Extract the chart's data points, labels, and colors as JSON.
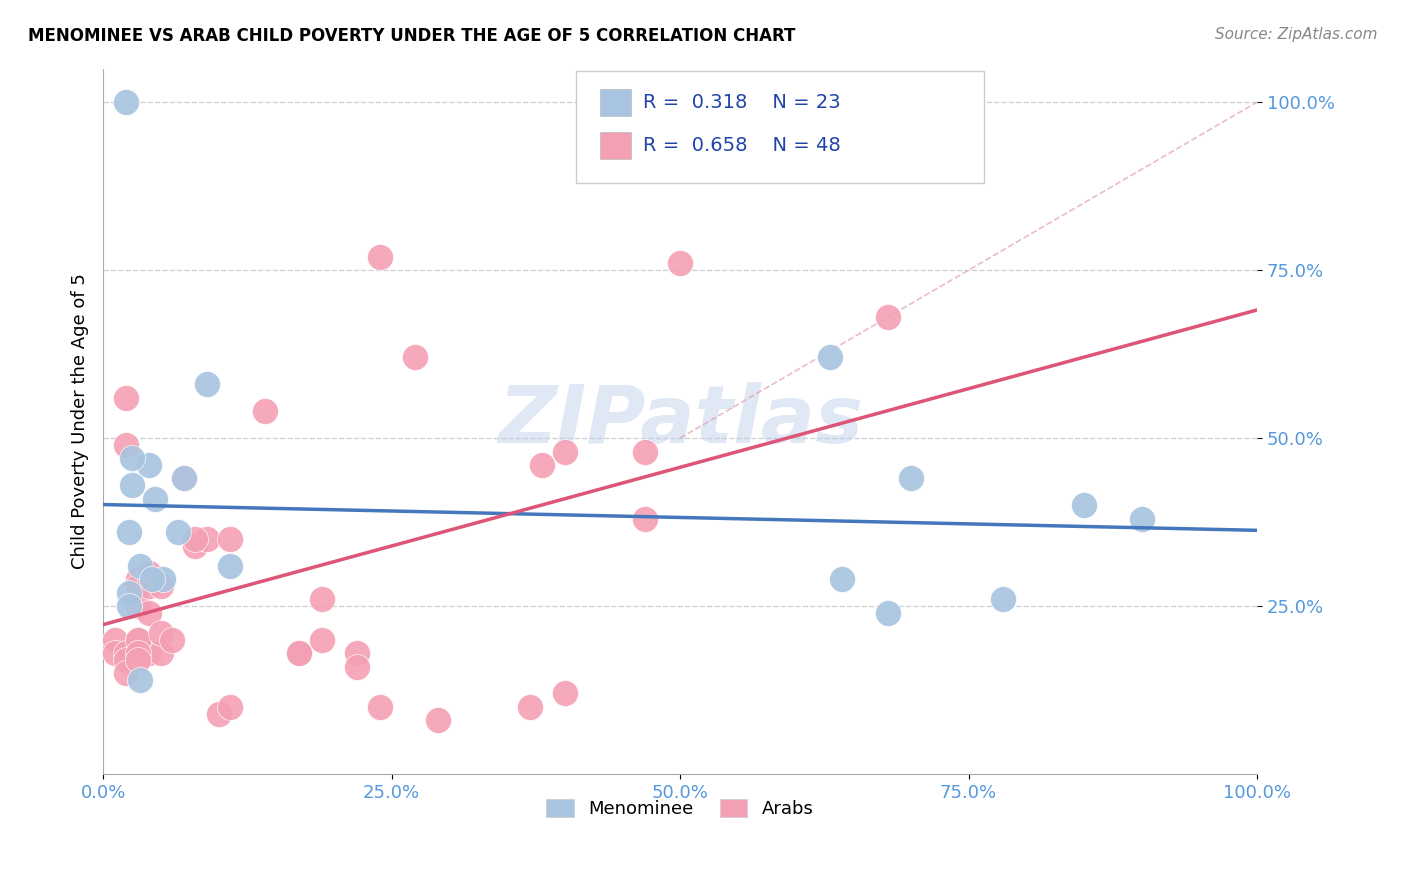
{
  "title": "MENOMINEE VS ARAB CHILD POVERTY UNDER THE AGE OF 5 CORRELATION CHART",
  "source": "Source: ZipAtlas.com",
  "ylabel": "Child Poverty Under the Age of 5",
  "menominee_R": 0.318,
  "menominee_N": 23,
  "arab_R": 0.658,
  "arab_N": 48,
  "menominee_color": "#a8c4e0",
  "arab_color": "#f4a0b4",
  "menominee_line_color": "#4477bb",
  "arab_line_color": "#dd5577",
  "diagonal_color": "#e0a0aa",
  "watermark": "ZIPatlas",
  "menominee_x": [
    0.02,
    0.04,
    0.07,
    0.09,
    0.11,
    0.025,
    0.045,
    0.065,
    0.022,
    0.022,
    0.032,
    0.052,
    0.042,
    0.032,
    0.63,
    0.64,
    0.7,
    0.78,
    0.85,
    0.68,
    0.9,
    0.025,
    0.022
  ],
  "menominee_y": [
    1.0,
    0.46,
    0.44,
    0.58,
    0.31,
    0.47,
    0.41,
    0.36,
    0.27,
    0.25,
    0.31,
    0.29,
    0.29,
    0.14,
    0.62,
    0.29,
    0.44,
    0.26,
    0.4,
    0.24,
    0.38,
    0.43,
    0.36
  ],
  "arab_x": [
    0.02,
    0.02,
    0.01,
    0.01,
    0.03,
    0.04,
    0.05,
    0.07,
    0.08,
    0.09,
    0.11,
    0.14,
    0.17,
    0.17,
    0.19,
    0.19,
    0.24,
    0.27,
    0.38,
    0.4,
    0.47,
    0.47,
    0.5,
    0.68,
    0.02,
    0.02,
    0.02,
    0.03,
    0.03,
    0.03,
    0.03,
    0.03,
    0.03,
    0.04,
    0.04,
    0.04,
    0.05,
    0.05,
    0.06,
    0.08,
    0.1,
    0.11,
    0.22,
    0.22,
    0.24,
    0.29,
    0.37,
    0.4
  ],
  "arab_y": [
    0.56,
    0.49,
    0.2,
    0.18,
    0.2,
    0.18,
    0.18,
    0.44,
    0.34,
    0.35,
    0.35,
    0.54,
    0.18,
    0.18,
    0.2,
    0.26,
    0.77,
    0.62,
    0.46,
    0.48,
    0.48,
    0.38,
    0.76,
    0.68,
    0.18,
    0.17,
    0.15,
    0.29,
    0.28,
    0.25,
    0.2,
    0.18,
    0.17,
    0.3,
    0.28,
    0.24,
    0.28,
    0.21,
    0.2,
    0.35,
    0.09,
    0.1,
    0.18,
    0.16,
    0.1,
    0.08,
    0.1,
    0.12
  ],
  "xlim": [
    0.0,
    1.0
  ],
  "ylim": [
    0.0,
    1.05
  ],
  "xticks": [
    0.0,
    0.25,
    0.5,
    0.75,
    1.0
  ],
  "yticks": [
    0.25,
    0.5,
    0.75,
    1.0
  ],
  "xticklabels": [
    "0.0%",
    "25.0%",
    "50.0%",
    "75.0%",
    "100.0%"
  ],
  "yticklabels": [
    "25.0%",
    "50.0%",
    "75.0%",
    "100.0%"
  ],
  "tick_color": "#5599dd",
  "title_fontsize": 12,
  "source_fontsize": 11
}
